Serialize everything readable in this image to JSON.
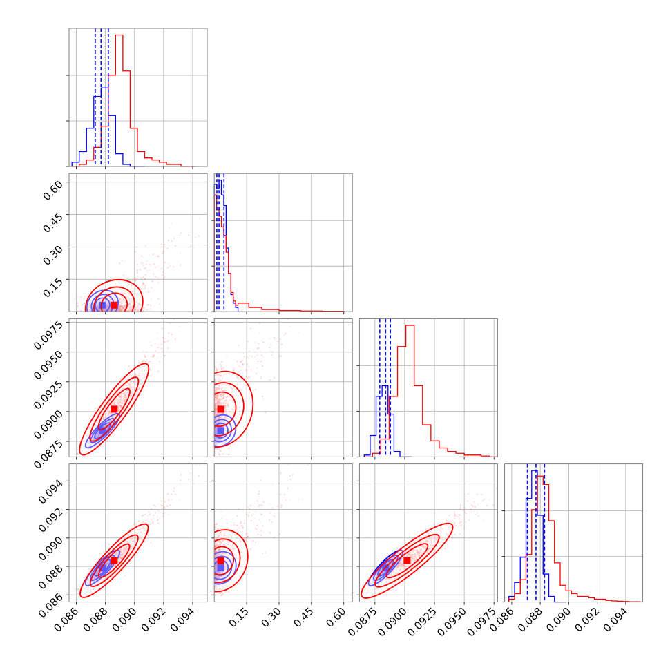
{
  "chart_data": {
    "type": "corner",
    "title": "",
    "colors": {
      "series_a": "#0000ff",
      "series_b": "#ff0000"
    },
    "grid": true,
    "parameters": [
      {
        "range": [
          0.0855,
          0.095
        ],
        "ticks": [
          "0.086",
          "0.088",
          "0.090",
          "0.092",
          "0.094"
        ],
        "tick_values": [
          0.086,
          0.088,
          0.09,
          0.092,
          0.094
        ]
      },
      {
        "range": [
          0.0,
          0.64
        ],
        "ticks": [
          "0.15",
          "0.30",
          "0.45",
          "0.60"
        ],
        "tick_values": [
          0.15,
          0.3,
          0.45,
          0.6
        ]
      },
      {
        "range": [
          0.0862,
          0.0978
        ],
        "ticks": [
          "0.0875",
          "0.0900",
          "0.0925",
          "0.0950",
          "0.0975"
        ],
        "tick_values": [
          0.0875,
          0.09,
          0.0925,
          0.095,
          0.0975
        ]
      },
      {
        "range": [
          0.0855,
          0.0952
        ],
        "ticks": [
          "0.086",
          "0.088",
          "0.090",
          "0.092",
          "0.094"
        ],
        "tick_values": [
          0.086,
          0.088,
          0.09,
          0.092,
          0.094
        ]
      }
    ],
    "series": [
      {
        "color": "#0000ff",
        "means": [
          0.0878,
          0.03,
          0.0884,
          0.0879
        ],
        "sds": [
          0.00045,
          0.022,
          0.00055,
          0.00048
        ],
        "quantiles": [
          [
            0.0873,
            0.0877,
            0.0882
          ],
          [
            0.012,
            0.022,
            0.045
          ],
          [
            0.0879,
            0.0884,
            0.0888
          ],
          [
            0.0871,
            0.0877,
            0.0883
          ]
        ],
        "hist": [
          {
            "edges": [
              0.0857,
              0.0862,
              0.0867,
              0.0872,
              0.0877,
              0.0882,
              0.0887,
              0.0892,
              0.0897,
              0.0902,
              0.0907
            ],
            "counts": [
              2,
              7,
              18,
              33,
              37,
              24,
              6,
              1,
              0,
              0
            ]
          },
          {
            "edges": [
              0.0,
              0.011,
              0.022,
              0.033,
              0.044,
              0.055,
              0.066,
              0.077,
              0.088,
              0.099,
              0.11
            ],
            "counts": [
              60,
              58,
              62,
              55,
              50,
              30,
              18,
              8,
              4,
              2
            ]
          },
          {
            "edges": [
              0.0866,
              0.0871,
              0.0876,
              0.0881,
              0.0886,
              0.0891,
              0.0896,
              0.0901,
              0.0906
            ],
            "counts": [
              1,
              12,
              34,
              40,
              24,
              3,
              0,
              0
            ]
          },
          {
            "edges": [
              0.0858,
              0.0862,
              0.0866,
              0.087,
              0.0874,
              0.0878,
              0.0882,
              0.0886,
              0.089,
              0.0894,
              0.0898
            ],
            "counts": [
              2,
              7,
              16,
              37,
              47,
              31,
              10,
              2,
              0,
              0
            ]
          }
        ]
      },
      {
        "color": "#ff0000",
        "means": [
          0.0886,
          0.03,
          0.0902,
          0.0884
        ],
        "sds": [
          0.0009,
          0.03,
          0.0015,
          0.001
        ],
        "quantiles": [],
        "hist": [
          {
            "edges": [
              0.0857,
              0.0862,
              0.0867,
              0.0872,
              0.0877,
              0.0882,
              0.0887,
              0.0892,
              0.0897,
              0.0902,
              0.0907,
              0.0912,
              0.0917,
              0.0922,
              0.0927,
              0.0932,
              0.0937,
              0.0942
            ],
            "counts": [
              0,
              1,
              3,
              9,
              19,
              43,
              62,
              45,
              18,
              7,
              4,
              3,
              2,
              1,
              1,
              0,
              0
            ]
          },
          {
            "edges": [
              0.0,
              0.011,
              0.022,
              0.033,
              0.044,
              0.055,
              0.066,
              0.077,
              0.088,
              0.099,
              0.11,
              0.16,
              0.22,
              0.3,
              0.4,
              0.5,
              0.6
            ],
            "counts": [
              55,
              48,
              45,
              40,
              36,
              28,
              18,
              9,
              5,
              3,
              4,
              2,
              1,
              0.5,
              0.3,
              0.2
            ]
          },
          {
            "edges": [
              0.0866,
              0.0873,
              0.088,
              0.0887,
              0.0894,
              0.0901,
              0.0908,
              0.0915,
              0.0922,
              0.0929,
              0.0936,
              0.0943,
              0.095,
              0.0957,
              0.0964,
              0.0971,
              0.0978
            ],
            "counts": [
              0,
              2,
              10,
              34,
              62,
              74,
              40,
              18,
              9,
              5,
              3,
              2,
              1,
              1,
              0.5,
              0
            ]
          },
          {
            "edges": [
              0.0858,
              0.0862,
              0.0866,
              0.087,
              0.0874,
              0.0878,
              0.0882,
              0.0886,
              0.089,
              0.0894,
              0.0898,
              0.0902,
              0.0906,
              0.091,
              0.0914,
              0.0918,
              0.0922,
              0.0926,
              0.093,
              0.0934,
              0.0938,
              0.0942,
              0.0946,
              0.095
            ],
            "counts": [
              1,
              3,
              8,
              17,
              33,
              45,
              42,
              29,
              14,
              6,
              4,
              3,
              2,
              2,
              1.5,
              1,
              1,
              0.6,
              0.4,
              0.3,
              0.2,
              0.1,
              0.1
            ]
          }
        ]
      }
    ]
  }
}
